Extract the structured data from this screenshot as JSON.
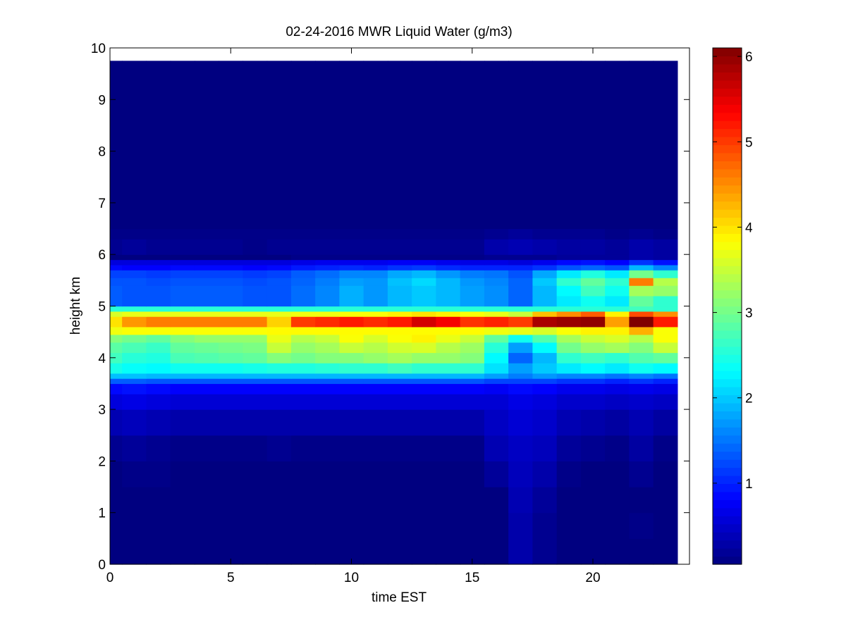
{
  "chart_data": {
    "type": "heatmap",
    "title": "02-24-2016 MWR Liquid Water (g/m3)",
    "xlabel": "time EST",
    "ylabel": "height km",
    "xlim": [
      0,
      24
    ],
    "ylim": [
      0,
      10
    ],
    "xticks": [
      0,
      5,
      10,
      15,
      20
    ],
    "yticks": [
      0,
      1,
      2,
      3,
      4,
      5,
      6,
      7,
      8,
      9,
      10
    ],
    "colorbar": {
      "colormap": "jet",
      "range": [
        0.05,
        6.1
      ],
      "ticks": [
        1,
        2,
        3,
        4,
        5,
        6
      ]
    },
    "grid": false,
    "x_centers": [
      0,
      1,
      2,
      3,
      4,
      5,
      6,
      7,
      8,
      9,
      10,
      11,
      12,
      13,
      14,
      15,
      16,
      17,
      18,
      19,
      20,
      21,
      22,
      23
    ],
    "height_bins_km": [
      [
        0.0,
        0.5
      ],
      [
        0.5,
        1.0
      ],
      [
        1.0,
        1.5
      ],
      [
        1.5,
        2.0
      ],
      [
        2.0,
        2.5
      ],
      [
        2.5,
        3.0
      ],
      [
        3.0,
        3.3
      ],
      [
        3.3,
        3.5
      ],
      [
        3.5,
        3.6
      ],
      [
        3.6,
        3.7
      ],
      [
        3.7,
        3.9
      ],
      [
        3.9,
        4.1
      ],
      [
        4.1,
        4.3
      ],
      [
        4.3,
        4.45
      ],
      [
        4.45,
        4.6
      ],
      [
        4.6,
        4.7
      ],
      [
        4.7,
        4.8
      ],
      [
        4.8,
        4.9
      ],
      [
        4.9,
        5.0
      ],
      [
        5.0,
        5.2
      ],
      [
        5.2,
        5.4
      ],
      [
        5.4,
        5.55
      ],
      [
        5.55,
        5.7
      ],
      [
        5.7,
        5.8
      ],
      [
        5.8,
        5.9
      ],
      [
        5.9,
        6.0
      ],
      [
        6.0,
        6.3
      ],
      [
        6.3,
        6.5
      ],
      [
        6.5,
        9.75
      ]
    ],
    "values": [
      [
        0.05,
        0.05,
        0.05,
        0.05,
        0.05,
        0.05,
        0.05,
        0.05,
        0.05,
        0.05,
        0.05,
        0.05,
        0.05,
        0.05,
        0.05,
        0.05,
        0.05,
        0.3,
        0.15,
        0.05,
        0.05,
        0.05,
        0.05,
        0.05
      ],
      [
        0.05,
        0.05,
        0.05,
        0.05,
        0.05,
        0.05,
        0.05,
        0.05,
        0.05,
        0.05,
        0.05,
        0.05,
        0.05,
        0.05,
        0.05,
        0.05,
        0.05,
        0.3,
        0.15,
        0.05,
        0.05,
        0.05,
        0.1,
        0.05
      ],
      [
        0.05,
        0.05,
        0.05,
        0.05,
        0.05,
        0.05,
        0.05,
        0.05,
        0.05,
        0.05,
        0.05,
        0.05,
        0.05,
        0.05,
        0.05,
        0.05,
        0.05,
        0.35,
        0.2,
        0.05,
        0.05,
        0.05,
        0.05,
        0.05
      ],
      [
        0.05,
        0.1,
        0.1,
        0.05,
        0.05,
        0.05,
        0.05,
        0.05,
        0.05,
        0.05,
        0.05,
        0.05,
        0.05,
        0.05,
        0.05,
        0.05,
        0.2,
        0.4,
        0.3,
        0.1,
        0.05,
        0.05,
        0.15,
        0.05
      ],
      [
        0.15,
        0.2,
        0.15,
        0.1,
        0.1,
        0.1,
        0.1,
        0.15,
        0.1,
        0.1,
        0.1,
        0.1,
        0.1,
        0.1,
        0.1,
        0.1,
        0.35,
        0.45,
        0.4,
        0.2,
        0.15,
        0.1,
        0.25,
        0.1
      ],
      [
        0.35,
        0.4,
        0.35,
        0.3,
        0.3,
        0.3,
        0.3,
        0.3,
        0.3,
        0.3,
        0.3,
        0.3,
        0.3,
        0.3,
        0.3,
        0.3,
        0.45,
        0.55,
        0.5,
        0.35,
        0.3,
        0.25,
        0.35,
        0.25
      ],
      [
        0.6,
        0.65,
        0.6,
        0.55,
        0.55,
        0.55,
        0.55,
        0.55,
        0.55,
        0.55,
        0.55,
        0.55,
        0.55,
        0.55,
        0.55,
        0.55,
        0.55,
        0.65,
        0.6,
        0.5,
        0.5,
        0.45,
        0.5,
        0.45
      ],
      [
        0.85,
        0.9,
        0.85,
        0.8,
        0.8,
        0.8,
        0.8,
        0.8,
        0.8,
        0.8,
        0.8,
        0.8,
        0.8,
        0.8,
        0.8,
        0.8,
        0.75,
        0.85,
        0.8,
        0.7,
        0.7,
        0.65,
        0.7,
        0.65
      ],
      [
        1.35,
        1.35,
        1.3,
        1.3,
        1.3,
        1.3,
        1.3,
        1.3,
        1.3,
        1.3,
        1.3,
        1.3,
        1.3,
        1.3,
        1.3,
        1.3,
        1.2,
        1.2,
        1.2,
        1.1,
        1.1,
        1.0,
        1.1,
        1.0
      ],
      [
        1.95,
        1.95,
        1.9,
        1.9,
        1.9,
        1.9,
        1.9,
        1.9,
        1.9,
        1.9,
        1.9,
        1.9,
        1.9,
        1.9,
        1.9,
        1.9,
        1.75,
        1.55,
        1.7,
        1.6,
        1.6,
        1.5,
        1.6,
        1.5
      ],
      [
        2.45,
        2.35,
        2.3,
        2.4,
        2.4,
        2.4,
        2.45,
        2.5,
        2.5,
        2.55,
        2.6,
        2.6,
        2.7,
        2.6,
        2.6,
        2.6,
        2.15,
        1.75,
        2.0,
        2.2,
        2.3,
        2.2,
        2.4,
        2.3
      ],
      [
        2.7,
        2.55,
        2.5,
        2.75,
        2.8,
        2.85,
        2.9,
        3.1,
        3.0,
        3.1,
        3.1,
        3.2,
        3.3,
        3.2,
        3.2,
        3.1,
        2.3,
        1.4,
        1.9,
        2.6,
        2.7,
        2.6,
        2.8,
        2.9
      ],
      [
        2.85,
        2.75,
        2.65,
        2.9,
        2.95,
        3.0,
        3.05,
        3.5,
        3.2,
        3.3,
        3.5,
        3.4,
        3.55,
        3.6,
        3.4,
        3.25,
        2.55,
        1.75,
        2.3,
        3.0,
        3.2,
        3.3,
        3.1,
        3.5
      ],
      [
        3.1,
        3.0,
        2.9,
        3.1,
        3.2,
        3.2,
        3.2,
        3.7,
        3.4,
        3.5,
        3.8,
        3.6,
        3.8,
        3.9,
        3.7,
        3.5,
        2.9,
        2.4,
        2.8,
        3.3,
        3.5,
        3.6,
        3.4,
        3.8
      ],
      [
        3.75,
        3.8,
        3.8,
        3.8,
        3.8,
        3.8,
        3.8,
        3.85,
        3.85,
        3.85,
        3.85,
        3.85,
        3.85,
        3.85,
        3.85,
        3.85,
        3.75,
        3.7,
        3.6,
        3.8,
        3.9,
        3.9,
        4.3,
        3.8
      ],
      [
        4.0,
        4.45,
        4.6,
        4.6,
        4.6,
        4.6,
        4.6,
        4.1,
        5.0,
        5.1,
        5.2,
        5.1,
        5.2,
        5.6,
        5.4,
        5.05,
        5.15,
        5.0,
        5.85,
        5.95,
        6.0,
        4.4,
        6.1,
        5.2
      ],
      [
        4.0,
        4.45,
        4.6,
        4.6,
        4.6,
        4.6,
        4.6,
        4.1,
        5.0,
        5.1,
        5.2,
        5.1,
        5.2,
        5.6,
        5.4,
        5.05,
        5.15,
        5.0,
        5.85,
        5.95,
        6.0,
        4.4,
        6.1,
        5.2
      ],
      [
        3.6,
        3.7,
        3.7,
        3.7,
        3.7,
        3.7,
        3.7,
        3.7,
        3.75,
        3.75,
        3.8,
        3.8,
        3.9,
        4.0,
        3.9,
        3.8,
        3.7,
        3.5,
        4.2,
        4.5,
        4.8,
        3.9,
        4.9,
        4.5
      ],
      [
        2.55,
        2.55,
        2.55,
        2.55,
        2.55,
        2.55,
        2.55,
        2.55,
        2.55,
        2.55,
        2.55,
        2.55,
        2.55,
        2.55,
        2.55,
        2.55,
        2.55,
        2.55,
        2.55,
        2.55,
        2.55,
        2.55,
        2.7,
        2.6
      ],
      [
        1.35,
        1.3,
        1.3,
        1.35,
        1.35,
        1.35,
        1.3,
        1.3,
        1.45,
        1.6,
        1.85,
        1.7,
        1.9,
        2.0,
        1.9,
        1.75,
        1.65,
        1.4,
        1.9,
        2.2,
        2.4,
        2.2,
        2.9,
        2.6
      ],
      [
        1.35,
        1.3,
        1.3,
        1.35,
        1.35,
        1.35,
        1.3,
        1.3,
        1.45,
        1.6,
        1.85,
        1.7,
        1.9,
        2.0,
        1.9,
        1.75,
        1.65,
        1.4,
        1.9,
        2.3,
        2.7,
        2.4,
        3.3,
        3.2
      ],
      [
        1.3,
        1.3,
        1.25,
        1.3,
        1.3,
        1.3,
        1.25,
        1.3,
        1.4,
        1.55,
        1.75,
        1.7,
        1.95,
        2.1,
        1.9,
        1.7,
        1.6,
        1.4,
        2.0,
        2.6,
        2.9,
        2.6,
        4.6,
        3.4
      ],
      [
        1.2,
        1.2,
        1.15,
        1.2,
        1.2,
        1.2,
        1.15,
        1.2,
        1.35,
        1.45,
        1.6,
        1.6,
        1.8,
        1.9,
        1.7,
        1.55,
        1.5,
        1.3,
        1.8,
        2.2,
        2.5,
        2.2,
        3.0,
        2.6
      ],
      [
        0.85,
        0.8,
        0.8,
        0.85,
        0.85,
        0.85,
        0.8,
        0.85,
        0.95,
        1.0,
        1.05,
        1.0,
        1.1,
        1.15,
        1.05,
        1.0,
        1.0,
        1.0,
        1.1,
        1.3,
        1.4,
        1.3,
        1.9,
        1.6
      ],
      [
        0.6,
        0.6,
        0.6,
        0.6,
        0.6,
        0.6,
        0.6,
        0.6,
        0.65,
        0.7,
        0.7,
        0.7,
        0.75,
        0.75,
        0.7,
        0.65,
        0.65,
        0.6,
        0.7,
        0.85,
        0.9,
        0.8,
        1.1,
        0.9
      ],
      [
        0.05,
        0.05,
        0.05,
        0.05,
        0.05,
        0.05,
        0.05,
        0.05,
        0.1,
        0.1,
        0.1,
        0.1,
        0.1,
        0.1,
        0.1,
        0.1,
        0.15,
        0.15,
        0.15,
        0.2,
        0.2,
        0.2,
        0.3,
        0.25
      ],
      [
        0.15,
        0.2,
        0.15,
        0.15,
        0.15,
        0.15,
        0.1,
        0.15,
        0.15,
        0.15,
        0.15,
        0.15,
        0.15,
        0.15,
        0.15,
        0.15,
        0.3,
        0.35,
        0.3,
        0.25,
        0.25,
        0.2,
        0.3,
        0.25
      ],
      [
        0.1,
        0.1,
        0.1,
        0.1,
        0.1,
        0.1,
        0.1,
        0.1,
        0.1,
        0.1,
        0.1,
        0.1,
        0.1,
        0.1,
        0.1,
        0.1,
        0.15,
        0.2,
        0.15,
        0.15,
        0.15,
        0.1,
        0.15,
        0.1
      ],
      [
        0.05,
        0.05,
        0.05,
        0.05,
        0.05,
        0.05,
        0.05,
        0.05,
        0.05,
        0.05,
        0.05,
        0.05,
        0.05,
        0.05,
        0.05,
        0.05,
        0.05,
        0.05,
        0.05,
        0.05,
        0.05,
        0.05,
        0.05,
        0.05
      ]
    ]
  }
}
